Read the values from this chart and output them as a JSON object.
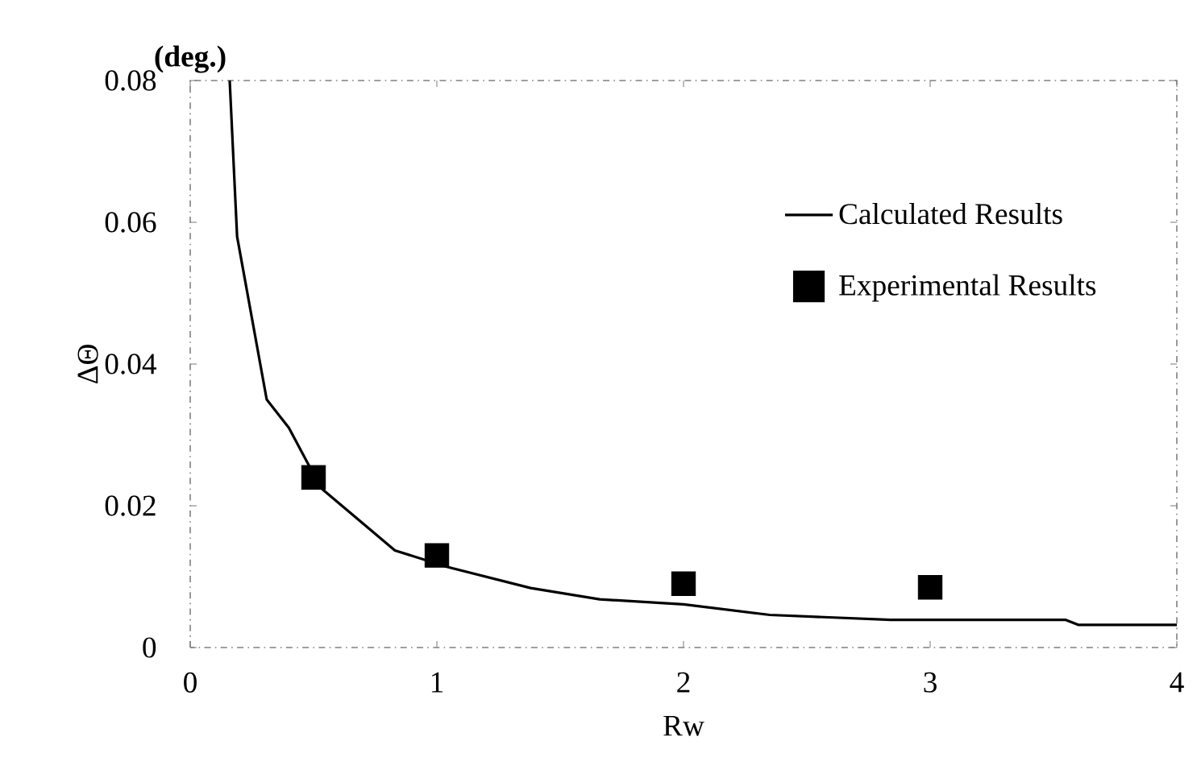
{
  "chart_data": {
    "type": "line",
    "xlabel": "Rw",
    "ylabel": "ΔΘ",
    "annotations": [
      "(deg.)"
    ],
    "xlim": [
      0,
      4
    ],
    "ylim": [
      0,
      0.08
    ],
    "xticks": [
      0,
      1,
      2,
      3,
      4
    ],
    "yticks": [
      0,
      0.02,
      0.04,
      0.06,
      0.08
    ],
    "grid": false,
    "legend": "top right",
    "series": [
      {
        "name": "Calculated Results",
        "color": "#000000",
        "marker": "none",
        "line_style": "solid",
        "x": [
          0.16,
          0.19,
          0.31,
          0.4,
          0.53,
          0.83,
          1.04,
          1.38,
          1.66,
          2.0,
          2.35,
          2.84,
          3.55,
          3.6,
          4.0
        ],
        "values": [
          0.08,
          0.058,
          0.035,
          0.031,
          0.0225,
          0.0137,
          0.0114,
          0.0084,
          0.0068,
          0.0061,
          0.0046,
          0.0039,
          0.0039,
          0.0032,
          0.0032
        ]
      },
      {
        "name": "Experimental Results",
        "type": "scatter",
        "color": "#000000",
        "marker": "square",
        "x": [
          0.5,
          1,
          2,
          3
        ],
        "values": [
          0.024,
          0.013,
          0.009,
          0.0085
        ]
      }
    ]
  }
}
